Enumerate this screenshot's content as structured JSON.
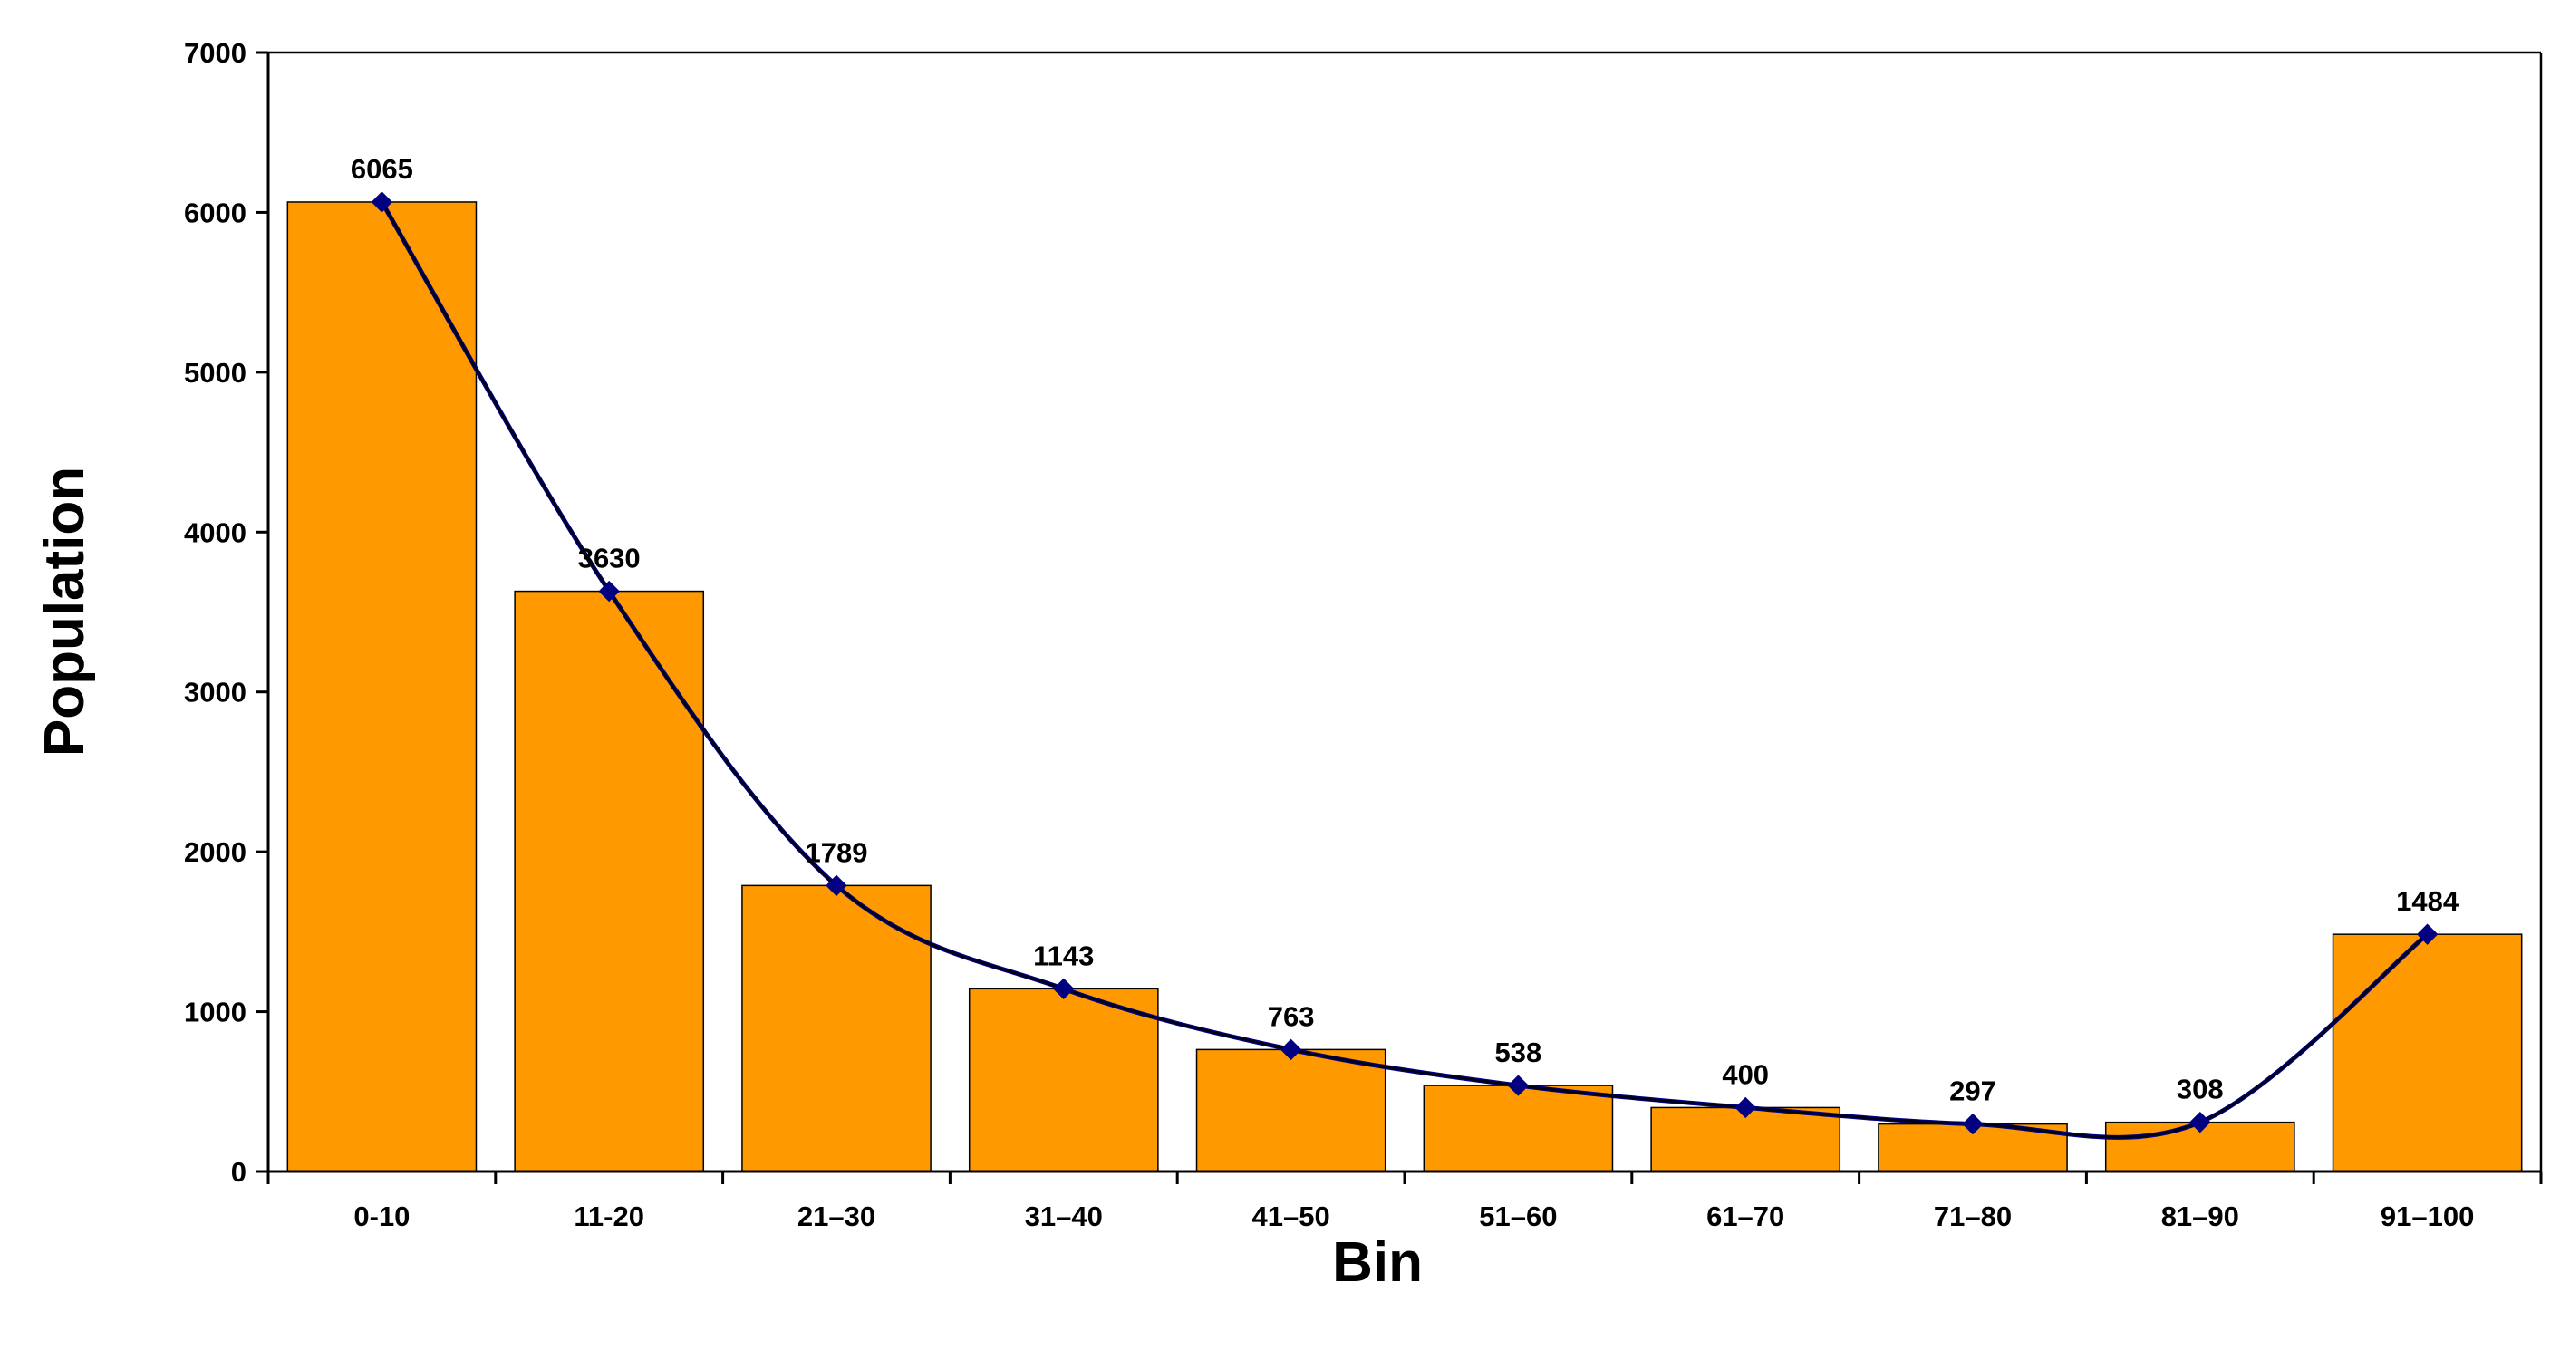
{
  "chart_data": {
    "type": "bar",
    "categories": [
      "0-10",
      "11-20",
      "21–30",
      "31–40",
      "41–50",
      "51–60",
      "61–70",
      "71–80",
      "81–90",
      "91–100"
    ],
    "series": [
      {
        "type": "bar",
        "values": [
          6065,
          3630,
          1789,
          1143,
          763,
          538,
          400,
          297,
          308,
          1484
        ]
      },
      {
        "type": "line",
        "smooth": true,
        "marker": "diamond",
        "values": [
          6065,
          3630,
          1789,
          1143,
          763,
          538,
          400,
          297,
          308,
          1484
        ]
      }
    ],
    "data_labels": [
      "6065",
      "3630",
      "1789",
      "1143",
      "763",
      "538",
      "400",
      "297",
      "308",
      "1484"
    ],
    "title": "",
    "xlabel": "Bin",
    "ylabel": "Population",
    "ylim": [
      0,
      7000
    ],
    "yticks": [
      "0",
      "1000",
      "2000",
      "3000",
      "4000",
      "5000",
      "6000",
      "7000"
    ],
    "grid": false,
    "legend": "none",
    "colors": {
      "bar_fill": "#FF9900",
      "bar_stroke": "#000000",
      "line_primary": "#000080",
      "line_overlay": "#000000",
      "marker": "#000080"
    }
  }
}
